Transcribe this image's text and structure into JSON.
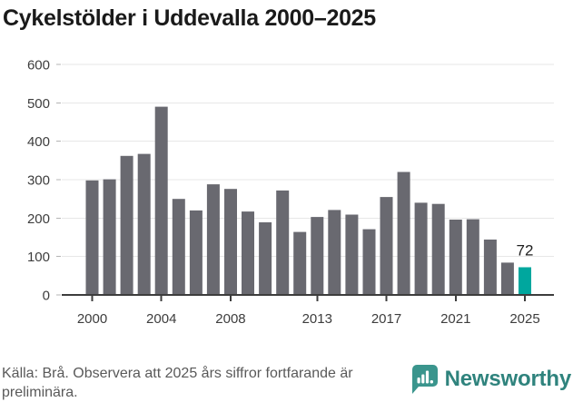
{
  "title": "Cykelstölder i Uddevalla 2000–2025",
  "chart_data": {
    "type": "bar",
    "title": "Cykelstölder i Uddevalla 2000–2025",
    "x": [
      2000,
      2001,
      2002,
      2003,
      2004,
      2005,
      2006,
      2007,
      2008,
      2009,
      2010,
      2011,
      2012,
      2013,
      2014,
      2015,
      2016,
      2017,
      2018,
      2019,
      2020,
      2021,
      2022,
      2023,
      2024,
      2025
    ],
    "values": [
      298,
      301,
      362,
      367,
      490,
      250,
      220,
      288,
      276,
      217,
      189,
      272,
      164,
      203,
      221,
      209,
      171,
      255,
      320,
      240,
      237,
      196,
      197,
      144,
      84,
      72
    ],
    "highlight_x": 2025,
    "annotation": {
      "x": 2025,
      "text": "72"
    },
    "xticks_labeled": [
      2000,
      2004,
      2008,
      2013,
      2017,
      2021,
      2025
    ],
    "yticks": [
      0,
      100,
      200,
      300,
      400,
      500,
      600
    ],
    "ylim": [
      0,
      600
    ],
    "xlabel": "",
    "ylabel": "",
    "grid": "horizontal",
    "legend": "none"
  },
  "colors": {
    "bar": "#696970",
    "highlight": "#00a79e",
    "grid": "#e7e7e7",
    "axis_line": "#3d3d3d",
    "axis_text": "#3d3d3d",
    "annotation": "#1f1f1f",
    "title": "#1a1a1a",
    "footer_text": "#595959",
    "logo_icon": "#3a958d",
    "logo_text": "#2f837d"
  },
  "footer": {
    "source_note": "Källa: Brå. Observera att 2025 års siffror fortfarande är preliminära.",
    "logo_text": "Newsworthy"
  }
}
